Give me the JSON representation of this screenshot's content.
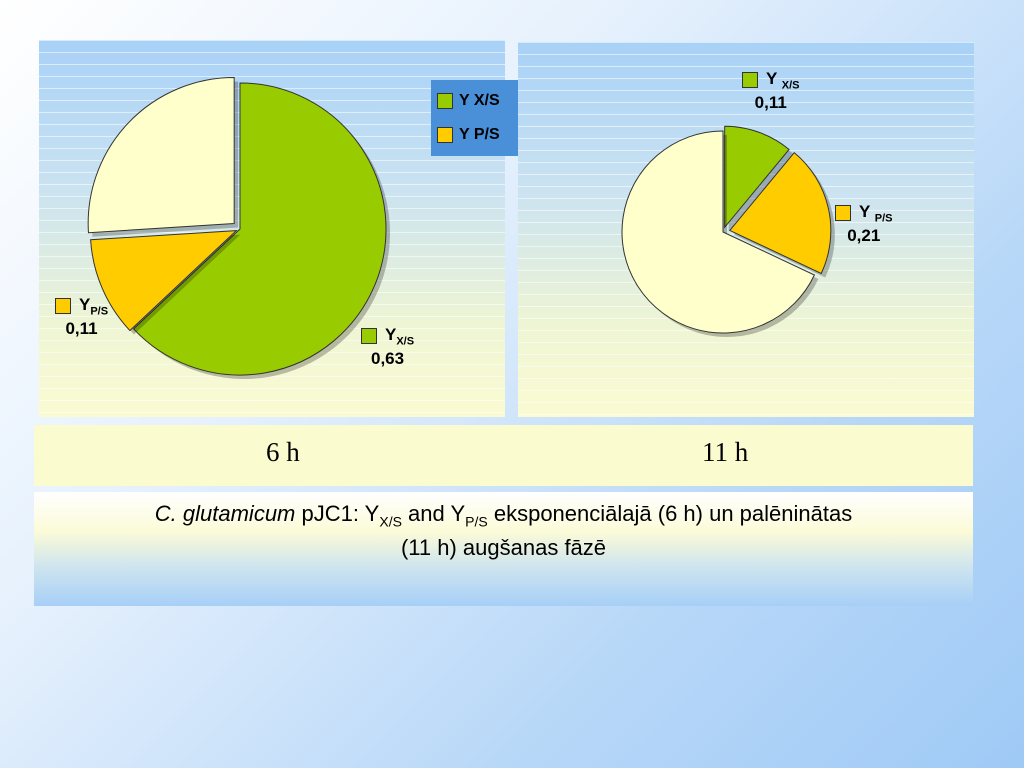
{
  "chart_data": [
    {
      "type": "pie",
      "title": "",
      "slices": [
        {
          "name": "Y X/S",
          "value": 0.63,
          "color": "#99cc00"
        },
        {
          "name": "Y P/S",
          "value": 0.11,
          "color": "#ffcc00"
        },
        {
          "name": "",
          "value": 0.26,
          "color": "#ffffcc"
        }
      ],
      "legend": {
        "placement": "top-right",
        "entries": [
          "Y X/S",
          "Y P/S"
        ],
        "background": "#4a90d9"
      },
      "labels": {
        "xs": {
          "main": "Y",
          "sub": "X/S",
          "value": "0,63"
        },
        "ps": {
          "main": "Y",
          "sub": "P/S",
          "value": "0,11"
        }
      }
    },
    {
      "type": "pie",
      "title": "",
      "slices": [
        {
          "name": "Y X/S",
          "value": 0.11,
          "color": "#99cc00"
        },
        {
          "name": "Y P/S",
          "value": 0.21,
          "color": "#ffcc00"
        },
        {
          "name": "",
          "value": 0.68,
          "color": "#ffffcc"
        }
      ],
      "labels": {
        "xs": {
          "main": "Y",
          "sub": "X/S",
          "value": "0,11"
        },
        "ps": {
          "main": "Y",
          "sub": "P/S",
          "value": "0,21"
        }
      }
    }
  ],
  "time_labels": [
    "6 h",
    "11 h"
  ],
  "caption": {
    "organism": "C. glutamicum",
    "strain": " pJC1: Y",
    "sub1": "X/S",
    "mid": " and Y",
    "sub2": "P/S",
    "rest": " eksponenciālajā (6 h) un palēninātas",
    "line2": "(11 h) augšanas fāzē"
  }
}
